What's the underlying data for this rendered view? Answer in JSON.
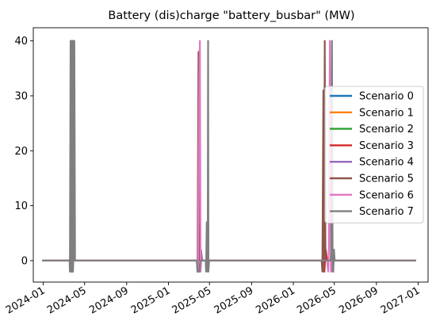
{
  "chart_data": {
    "type": "line",
    "title": "Battery (dis)charge \"battery_busbar\" (MW)",
    "xlabel": "",
    "ylabel": "",
    "x_range": [
      "2023-12-03",
      "2027-01-30"
    ],
    "ylim": [
      -3.9,
      42.4
    ],
    "x_ticks": [
      {
        "date": "2024-01-01",
        "label": "2024-01"
      },
      {
        "date": "2024-05-01",
        "label": "2024-05"
      },
      {
        "date": "2024-09-01",
        "label": "2024-09"
      },
      {
        "date": "2025-01-01",
        "label": "2025-01"
      },
      {
        "date": "2025-05-01",
        "label": "2025-05"
      },
      {
        "date": "2025-09-01",
        "label": "2025-09"
      },
      {
        "date": "2026-01-01",
        "label": "2026-01"
      },
      {
        "date": "2026-05-01",
        "label": "2026-05"
      },
      {
        "date": "2026-09-01",
        "label": "2026-09"
      },
      {
        "date": "2027-01-01",
        "label": "2027-01"
      }
    ],
    "y_ticks": [
      0,
      10,
      20,
      30,
      40
    ],
    "grid": false,
    "legend_position": "center-right",
    "series": [
      {
        "name": "Scenario 0",
        "color": "#1f77b4",
        "points": [
          [
            "2024-01-01",
            0
          ],
          [
            "2024-03-22",
            0
          ],
          [
            "2024-03-23",
            -2
          ],
          [
            "2024-03-27",
            -2
          ],
          [
            "2024-03-28",
            40
          ],
          [
            "2024-04-01",
            0
          ],
          [
            "2026-12-23",
            0
          ]
        ]
      },
      {
        "name": "Scenario 1",
        "color": "#ff7f0e",
        "points": [
          [
            "2024-01-01",
            0
          ],
          [
            "2024-03-22",
            0
          ],
          [
            "2024-03-24",
            -2
          ],
          [
            "2024-03-29",
            40
          ],
          [
            "2024-04-01",
            0
          ],
          [
            "2026-12-23",
            0
          ]
        ]
      },
      {
        "name": "Scenario 2",
        "color": "#2ca02c",
        "points": [
          [
            "2024-01-01",
            0
          ],
          [
            "2024-03-22",
            0
          ],
          [
            "2024-03-25",
            -2
          ],
          [
            "2024-03-30",
            40
          ],
          [
            "2024-04-01",
            0
          ],
          [
            "2026-12-23",
            0
          ]
        ]
      },
      {
        "name": "Scenario 3",
        "color": "#d62728",
        "points": [
          [
            "2024-01-01",
            0
          ],
          [
            "2024-03-22",
            0
          ],
          [
            "2024-03-26",
            -2
          ],
          [
            "2024-03-31",
            40
          ],
          [
            "2024-04-01",
            0
          ],
          [
            "2026-03-30",
            0
          ],
          [
            "2026-04-02",
            -2
          ],
          [
            "2026-04-06",
            2
          ],
          [
            "2026-04-10",
            0
          ],
          [
            "2026-12-23",
            0
          ]
        ]
      },
      {
        "name": "Scenario 4",
        "color": "#9467bd",
        "points": [
          [
            "2024-01-01",
            0
          ],
          [
            "2025-03-28",
            0
          ],
          [
            "2025-04-02",
            -2
          ],
          [
            "2025-04-06",
            2
          ],
          [
            "2025-04-10",
            0
          ],
          [
            "2026-12-23",
            0
          ]
        ]
      },
      {
        "name": "Scenario 5",
        "color": "#8c564b",
        "points": [
          [
            "2024-01-01",
            0
          ],
          [
            "2025-03-25",
            0
          ],
          [
            "2025-03-27",
            -2
          ],
          [
            "2025-03-30",
            38
          ],
          [
            "2025-04-01",
            31
          ],
          [
            "2025-04-02",
            0
          ],
          [
            "2026-03-25",
            0
          ],
          [
            "2026-03-27",
            -2
          ],
          [
            "2026-03-30",
            31
          ],
          [
            "2026-04-01",
            -2
          ],
          [
            "2026-04-03",
            40
          ],
          [
            "2026-04-05",
            0
          ],
          [
            "2026-12-23",
            0
          ]
        ]
      },
      {
        "name": "Scenario 6",
        "color": "#e377c2",
        "points": [
          [
            "2024-01-01",
            0
          ],
          [
            "2025-03-25",
            0
          ],
          [
            "2025-03-28",
            -2
          ],
          [
            "2025-04-01",
            31
          ],
          [
            "2025-04-03",
            40
          ],
          [
            "2025-04-05",
            -2
          ],
          [
            "2025-04-07",
            0
          ],
          [
            "2026-04-10",
            0
          ],
          [
            "2026-04-13",
            -2
          ],
          [
            "2026-04-15",
            2
          ],
          [
            "2026-04-18",
            40
          ],
          [
            "2026-04-21",
            -2
          ],
          [
            "2026-04-23",
            0
          ],
          [
            "2026-12-23",
            0
          ]
        ]
      },
      {
        "name": "Scenario 7",
        "color": "#7f7f7f",
        "points": [
          [
            "2024-01-01",
            0
          ],
          [
            "2024-03-18",
            0
          ],
          [
            "2024-03-19",
            -2
          ],
          [
            "2024-03-21",
            40
          ],
          [
            "2024-03-22",
            -2
          ],
          [
            "2024-03-23",
            40
          ],
          [
            "2024-03-24",
            -2
          ],
          [
            "2024-03-25",
            40
          ],
          [
            "2024-03-26",
            -2
          ],
          [
            "2024-03-27",
            40
          ],
          [
            "2024-03-28",
            -2
          ],
          [
            "2024-03-29",
            0
          ],
          [
            "2024-03-31",
            2
          ],
          [
            "2024-04-01",
            40
          ],
          [
            "2024-04-03",
            0
          ],
          [
            "2025-03-25",
            0
          ],
          [
            "2025-03-27",
            -2
          ],
          [
            "2025-03-29",
            -2
          ],
          [
            "2025-03-31",
            -2
          ],
          [
            "2025-04-02",
            -2
          ],
          [
            "2025-04-04",
            0
          ],
          [
            "2025-04-20",
            0
          ],
          [
            "2025-04-21",
            -2
          ],
          [
            "2025-04-23",
            7
          ],
          [
            "2025-04-24",
            -2
          ],
          [
            "2025-04-26",
            7
          ],
          [
            "2025-04-27",
            40
          ],
          [
            "2025-04-28",
            -2
          ],
          [
            "2025-04-30",
            0
          ],
          [
            "2026-04-20",
            0
          ],
          [
            "2026-04-22",
            2
          ],
          [
            "2026-04-24",
            40
          ],
          [
            "2026-04-26",
            -2
          ],
          [
            "2026-04-28",
            -2
          ],
          [
            "2026-04-30",
            2
          ],
          [
            "2026-05-02",
            0
          ],
          [
            "2026-12-23",
            0
          ]
        ]
      }
    ]
  }
}
